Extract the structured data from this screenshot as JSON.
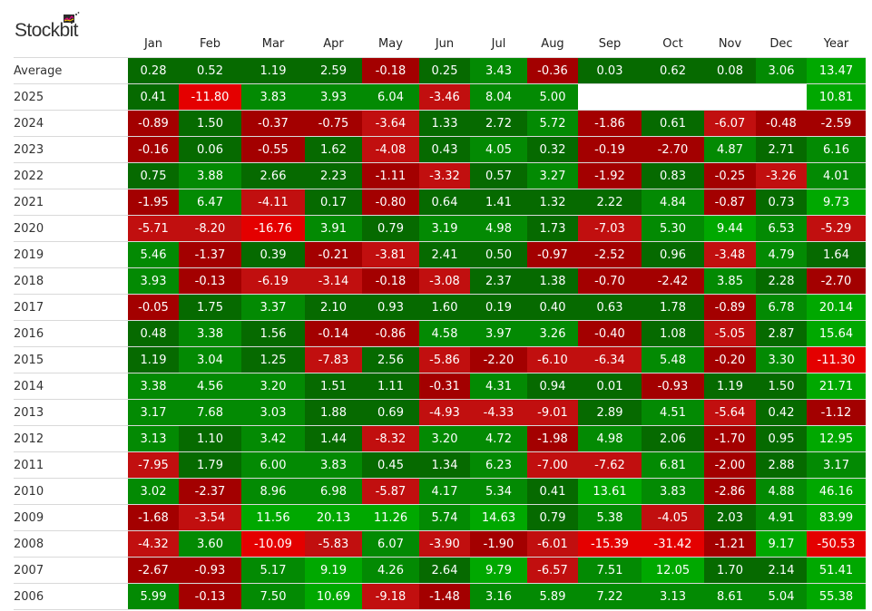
{
  "brand": {
    "name": "Stockbit",
    "logo_icon": "chart-badge-icon"
  },
  "palette": {
    "green_dark": "#066a00",
    "green_mid": "#038a03",
    "green_bright": "#00a800",
    "red_dark": "#a30000",
    "red_mid": "#c10f0f",
    "red_bright": "#e40000",
    "blank": "#ffffff"
  },
  "table": {
    "columns": [
      "Jan",
      "Feb",
      "Mar",
      "Apr",
      "May",
      "Jun",
      "Jul",
      "Aug",
      "Sep",
      "Oct",
      "Nov",
      "Dec",
      "Year"
    ],
    "rows": [
      {
        "label": "Average",
        "values": [
          "0.28",
          "0.52",
          "1.19",
          "2.59",
          "-0.18",
          "0.25",
          "3.43",
          "-0.36",
          "0.03",
          "0.62",
          "0.08",
          "3.06",
          "13.47"
        ]
      },
      {
        "label": "2025",
        "values": [
          "0.41",
          "-11.80",
          "3.83",
          "3.93",
          "6.04",
          "-3.46",
          "8.04",
          "5.00",
          "",
          "",
          "",
          "",
          "10.81"
        ]
      },
      {
        "label": "2024",
        "values": [
          "-0.89",
          "1.50",
          "-0.37",
          "-0.75",
          "-3.64",
          "1.33",
          "2.72",
          "5.72",
          "-1.86",
          "0.61",
          "-6.07",
          "-0.48",
          "-2.59"
        ]
      },
      {
        "label": "2023",
        "values": [
          "-0.16",
          "0.06",
          "-0.55",
          "1.62",
          "-4.08",
          "0.43",
          "4.05",
          "0.32",
          "-0.19",
          "-2.70",
          "4.87",
          "2.71",
          "6.16"
        ]
      },
      {
        "label": "2022",
        "values": [
          "0.75",
          "3.88",
          "2.66",
          "2.23",
          "-1.11",
          "-3.32",
          "0.57",
          "3.27",
          "-1.92",
          "0.83",
          "-0.25",
          "-3.26",
          "4.01"
        ]
      },
      {
        "label": "2021",
        "values": [
          "-1.95",
          "6.47",
          "-4.11",
          "0.17",
          "-0.80",
          "0.64",
          "1.41",
          "1.32",
          "2.22",
          "4.84",
          "-0.87",
          "0.73",
          "9.73"
        ]
      },
      {
        "label": "2020",
        "values": [
          "-5.71",
          "-8.20",
          "-16.76",
          "3.91",
          "0.79",
          "3.19",
          "4.98",
          "1.73",
          "-7.03",
          "5.30",
          "9.44",
          "6.53",
          "-5.29"
        ]
      },
      {
        "label": "2019",
        "values": [
          "5.46",
          "-1.37",
          "0.39",
          "-0.21",
          "-3.81",
          "2.41",
          "0.50",
          "-0.97",
          "-2.52",
          "0.96",
          "-3.48",
          "4.79",
          "1.64"
        ]
      },
      {
        "label": "2018",
        "values": [
          "3.93",
          "-0.13",
          "-6.19",
          "-3.14",
          "-0.18",
          "-3.08",
          "2.37",
          "1.38",
          "-0.70",
          "-2.42",
          "3.85",
          "2.28",
          "-2.70"
        ]
      },
      {
        "label": "2017",
        "values": [
          "-0.05",
          "1.75",
          "3.37",
          "2.10",
          "0.93",
          "1.60",
          "0.19",
          "0.40",
          "0.63",
          "1.78",
          "-0.89",
          "6.78",
          "20.14"
        ]
      },
      {
        "label": "2016",
        "values": [
          "0.48",
          "3.38",
          "1.56",
          "-0.14",
          "-0.86",
          "4.58",
          "3.97",
          "3.26",
          "-0.40",
          "1.08",
          "-5.05",
          "2.87",
          "15.64"
        ]
      },
      {
        "label": "2015",
        "values": [
          "1.19",
          "3.04",
          "1.25",
          "-7.83",
          "2.56",
          "-5.86",
          "-2.20",
          "-6.10",
          "-6.34",
          "5.48",
          "-0.20",
          "3.30",
          "-11.30"
        ]
      },
      {
        "label": "2014",
        "values": [
          "3.38",
          "4.56",
          "3.20",
          "1.51",
          "1.11",
          "-0.31",
          "4.31",
          "0.94",
          "0.01",
          "-0.93",
          "1.19",
          "1.50",
          "21.71"
        ]
      },
      {
        "label": "2013",
        "values": [
          "3.17",
          "7.68",
          "3.03",
          "1.88",
          "0.69",
          "-4.93",
          "-4.33",
          "-9.01",
          "2.89",
          "4.51",
          "-5.64",
          "0.42",
          "-1.12"
        ]
      },
      {
        "label": "2012",
        "values": [
          "3.13",
          "1.10",
          "3.42",
          "1.44",
          "-8.32",
          "3.20",
          "4.72",
          "-1.98",
          "4.98",
          "2.06",
          "-1.70",
          "0.95",
          "12.95"
        ]
      },
      {
        "label": "2011",
        "values": [
          "-7.95",
          "1.79",
          "6.00",
          "3.83",
          "0.45",
          "1.34",
          "6.23",
          "-7.00",
          "-7.62",
          "6.81",
          "-2.00",
          "2.88",
          "3.17"
        ]
      },
      {
        "label": "2010",
        "values": [
          "3.02",
          "-2.37",
          "8.96",
          "6.98",
          "-5.87",
          "4.17",
          "5.34",
          "0.41",
          "13.61",
          "3.83",
          "-2.86",
          "4.88",
          "46.16"
        ]
      },
      {
        "label": "2009",
        "values": [
          "-1.68",
          "-3.54",
          "11.56",
          "20.13",
          "11.26",
          "5.74",
          "14.63",
          "0.79",
          "5.38",
          "-4.05",
          "2.03",
          "4.91",
          "83.99"
        ]
      },
      {
        "label": "2008",
        "values": [
          "-4.32",
          "3.60",
          "-10.09",
          "-5.83",
          "6.07",
          "-3.90",
          "-1.90",
          "-6.01",
          "-15.39",
          "-31.42",
          "-1.21",
          "9.17",
          "-50.53"
        ]
      },
      {
        "label": "2007",
        "values": [
          "-2.67",
          "-0.93",
          "5.17",
          "9.19",
          "4.26",
          "2.64",
          "9.79",
          "-6.57",
          "7.51",
          "12.05",
          "1.70",
          "2.14",
          "51.41"
        ]
      },
      {
        "label": "2006",
        "values": [
          "5.99",
          "-0.13",
          "7.50",
          "10.69",
          "-9.18",
          "-1.48",
          "3.16",
          "5.89",
          "7.22",
          "3.13",
          "8.61",
          "5.04",
          "55.38"
        ]
      }
    ]
  }
}
